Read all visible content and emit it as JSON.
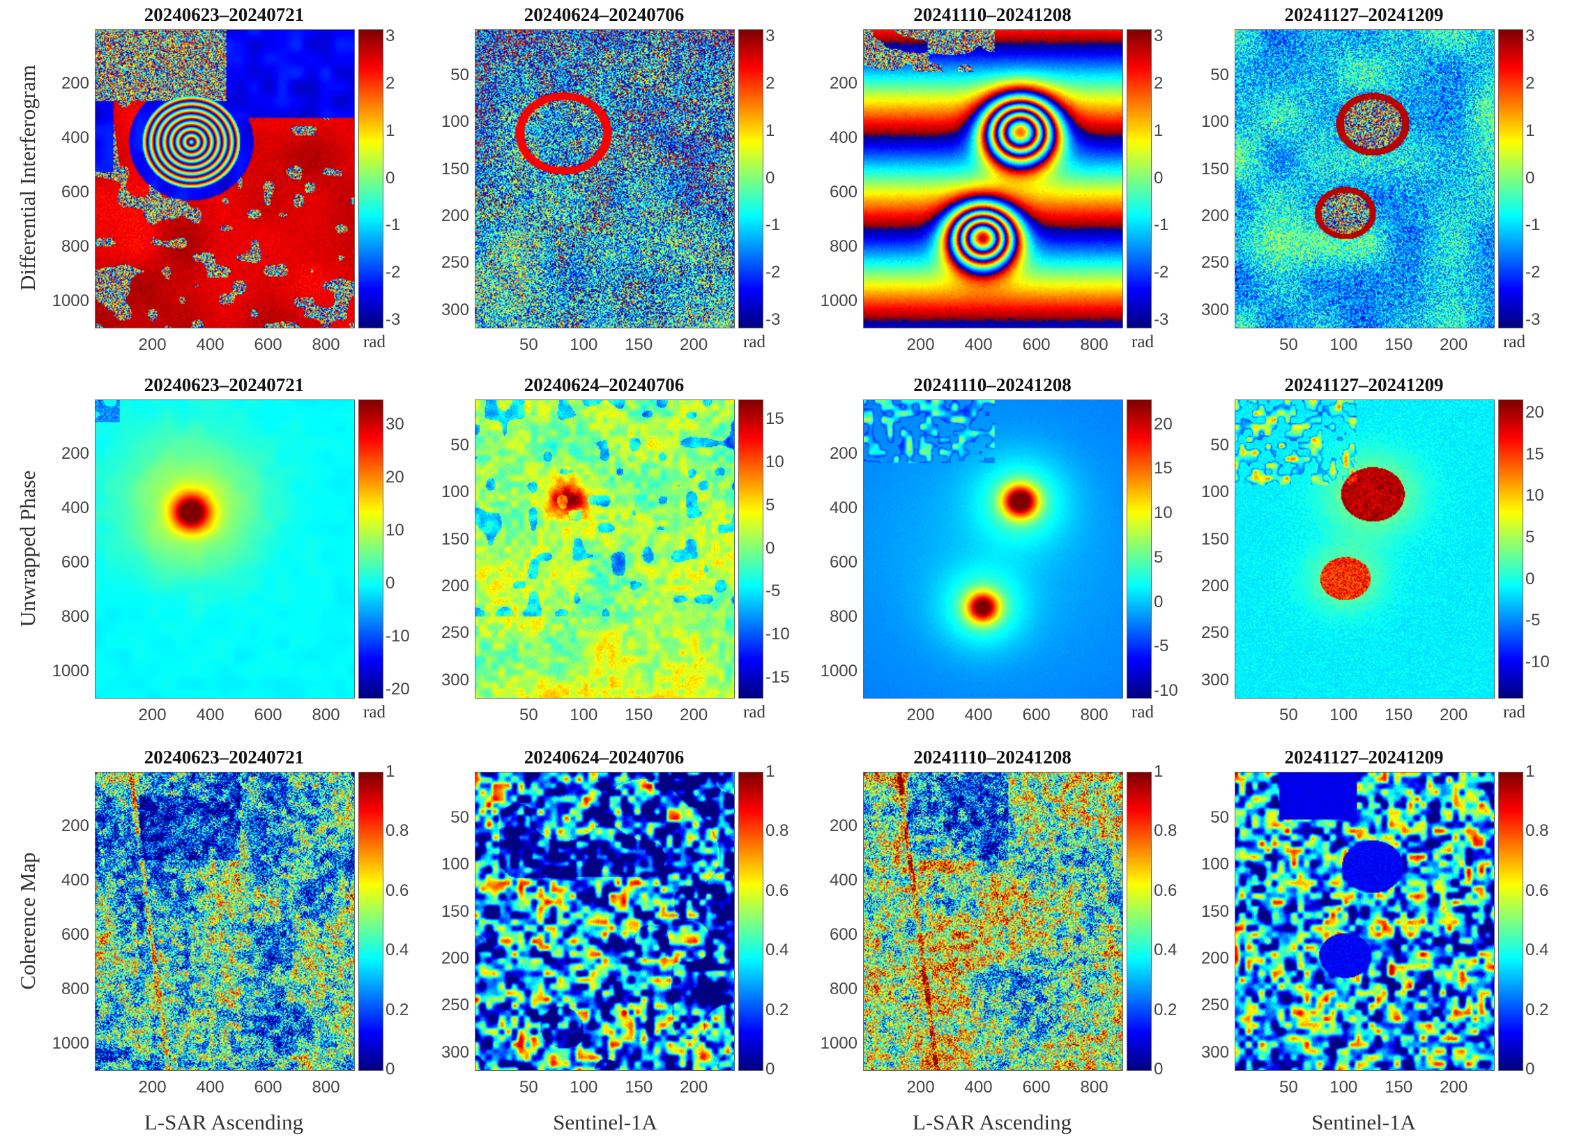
{
  "row_labels": [
    "Differential Interferogram",
    "Unwrapped Phase",
    "Coherence Map"
  ],
  "column_labels": [
    "L-SAR Ascending",
    "Sentinel-1A",
    "L-SAR Ascending",
    "Sentinel-1A"
  ],
  "chart_data": [
    {
      "type": "heatmap",
      "row": 0,
      "col": 0,
      "title": "20240623–20240721",
      "sensor": "L-SAR Ascending",
      "colormap": "jet",
      "unit": "rad",
      "clim": [
        -3.14,
        3.14
      ],
      "cbar_ticks": [
        "3",
        "2",
        "1",
        "0",
        "-1",
        "-2",
        "-3"
      ],
      "cbar_values": [
        3,
        2,
        1,
        0,
        -1,
        -2,
        -3
      ],
      "xlim": [
        1,
        895
      ],
      "ylim": [
        1,
        1095
      ],
      "xticks": [
        200,
        400,
        600,
        800
      ],
      "yticks": [
        200,
        400,
        600,
        800,
        1000
      ],
      "features": [
        {
          "kind": "concentric-fringes",
          "x": 330,
          "y": 410
        }
      ]
    },
    {
      "type": "heatmap",
      "row": 0,
      "col": 1,
      "title": "20240624–20240706",
      "sensor": "Sentinel-1A",
      "colormap": "jet",
      "unit": "rad",
      "clim": [
        -3.14,
        3.14
      ],
      "cbar_ticks": [
        "3",
        "2",
        "1",
        "0",
        "-1",
        "-2",
        "-3"
      ],
      "cbar_values": [
        3,
        2,
        1,
        0,
        -1,
        -2,
        -3
      ],
      "xlim": [
        1,
        236
      ],
      "ylim": [
        1,
        318
      ],
      "xticks": [
        50,
        100,
        150,
        200
      ],
      "yticks": [
        50,
        100,
        150,
        200,
        250,
        300
      ],
      "features": [
        {
          "kind": "fringe-ring",
          "x": 80,
          "y": 110
        }
      ]
    },
    {
      "type": "heatmap",
      "row": 0,
      "col": 2,
      "title": "20241110–20241208",
      "sensor": "L-SAR Ascending",
      "colormap": "jet",
      "unit": "rad",
      "clim": [
        -3.14,
        3.14
      ],
      "cbar_ticks": [
        "3",
        "2",
        "1",
        "0",
        "-1",
        "-2",
        "-3"
      ],
      "cbar_values": [
        3,
        2,
        1,
        0,
        -1,
        -2,
        -3
      ],
      "xlim": [
        1,
        895
      ],
      "ylim": [
        1,
        1095
      ],
      "xticks": [
        200,
        400,
        600,
        800
      ],
      "yticks": [
        200,
        400,
        600,
        800,
        1000
      ],
      "features": [
        {
          "kind": "concentric-fringes",
          "x": 540,
          "y": 370
        },
        {
          "kind": "concentric-fringes",
          "x": 410,
          "y": 760
        }
      ]
    },
    {
      "type": "heatmap",
      "row": 0,
      "col": 3,
      "title": "20241127–20241209",
      "sensor": "Sentinel-1A",
      "colormap": "jet",
      "unit": "rad",
      "clim": [
        -3.14,
        3.14
      ],
      "cbar_ticks": [
        "3",
        "2",
        "1",
        "0",
        "-1",
        "-2",
        "-3"
      ],
      "cbar_values": [
        3,
        2,
        1,
        0,
        -1,
        -2,
        -3
      ],
      "xlim": [
        1,
        236
      ],
      "ylim": [
        1,
        318
      ],
      "xticks": [
        50,
        100,
        150,
        200
      ],
      "yticks": [
        50,
        100,
        150,
        200,
        250,
        300
      ],
      "features": [
        {
          "kind": "fringe-ring",
          "x": 125,
          "y": 100
        },
        {
          "kind": "fringe-ring",
          "x": 100,
          "y": 195
        }
      ]
    },
    {
      "type": "heatmap",
      "row": 1,
      "col": 0,
      "title": "20240623–20240721",
      "sensor": "L-SAR Ascending",
      "colormap": "jet",
      "unit": "rad",
      "clim": [
        -21.4,
        34.7
      ],
      "cbar_ticks": [
        "30",
        "20",
        "10",
        "0",
        "-10",
        "-20"
      ],
      "cbar_values": [
        30,
        20,
        10,
        0,
        -10,
        -20
      ],
      "xlim": [
        1,
        895
      ],
      "ylim": [
        1,
        1095
      ],
      "xticks": [
        200,
        400,
        600,
        800
      ],
      "yticks": [
        200,
        400,
        600,
        800,
        1000
      ],
      "features": [
        {
          "kind": "peak",
          "x": 330,
          "y": 410,
          "value": 33
        }
      ]
    },
    {
      "type": "heatmap",
      "row": 1,
      "col": 1,
      "title": "20240624–20240706",
      "sensor": "Sentinel-1A",
      "colormap": "jet",
      "unit": "rad",
      "clim": [
        -17.3,
        17.3
      ],
      "cbar_ticks": [
        "15",
        "10",
        "5",
        "0",
        "-5",
        "-10",
        "-15"
      ],
      "cbar_values": [
        15,
        10,
        5,
        0,
        -5,
        -10,
        -15
      ],
      "xlim": [
        1,
        236
      ],
      "ylim": [
        1,
        318
      ],
      "xticks": [
        50,
        100,
        150,
        200
      ],
      "yticks": [
        50,
        100,
        150,
        200,
        250,
        300
      ],
      "features": [
        {
          "kind": "peak",
          "x": 85,
          "y": 105,
          "value": 15
        }
      ]
    },
    {
      "type": "heatmap",
      "row": 1,
      "col": 2,
      "title": "20241110–20241208",
      "sensor": "L-SAR Ascending",
      "colormap": "jet",
      "unit": "rad",
      "clim": [
        -10.7,
        22.8
      ],
      "cbar_ticks": [
        "20",
        "15",
        "10",
        "5",
        "0",
        "-5",
        "-10"
      ],
      "cbar_values": [
        20,
        15,
        10,
        5,
        0,
        -5,
        -10
      ],
      "xlim": [
        1,
        895
      ],
      "ylim": [
        1,
        1095
      ],
      "xticks": [
        200,
        400,
        600,
        800
      ],
      "yticks": [
        200,
        400,
        600,
        800,
        1000
      ],
      "features": [
        {
          "kind": "peak",
          "x": 540,
          "y": 370,
          "value": 22
        },
        {
          "kind": "peak",
          "x": 410,
          "y": 760,
          "value": 19
        }
      ]
    },
    {
      "type": "heatmap",
      "row": 1,
      "col": 3,
      "title": "20241127–20241209",
      "sensor": "Sentinel-1A",
      "colormap": "jet",
      "unit": "rad",
      "clim": [
        -14.2,
        21.6
      ],
      "cbar_ticks": [
        "20",
        "15",
        "10",
        "5",
        "0",
        "-5",
        "-10"
      ],
      "cbar_values": [
        20,
        15,
        10,
        5,
        0,
        -5,
        -10
      ],
      "xlim": [
        1,
        236
      ],
      "ylim": [
        1,
        318
      ],
      "xticks": [
        50,
        100,
        150,
        200
      ],
      "yticks": [
        50,
        100,
        150,
        200,
        250,
        300
      ],
      "features": [
        {
          "kind": "peak",
          "x": 125,
          "y": 100,
          "value": 20
        },
        {
          "kind": "peak",
          "x": 100,
          "y": 190,
          "value": 15
        }
      ]
    },
    {
      "type": "heatmap",
      "row": 2,
      "col": 0,
      "title": "20240623–20240721",
      "sensor": "L-SAR Ascending",
      "colormap": "jet",
      "unit": "",
      "clim": [
        0,
        1
      ],
      "cbar_ticks": [
        "1",
        "0.8",
        "0.6",
        "0.4",
        "0.2",
        "0"
      ],
      "cbar_values": [
        1,
        0.8,
        0.6,
        0.4,
        0.2,
        0
      ],
      "xlim": [
        1,
        895
      ],
      "ylim": [
        1,
        1095
      ],
      "xticks": [
        200,
        400,
        600,
        800
      ],
      "yticks": [
        200,
        400,
        600,
        800,
        1000
      ],
      "features": []
    },
    {
      "type": "heatmap",
      "row": 2,
      "col": 1,
      "title": "20240624–20240706",
      "sensor": "Sentinel-1A",
      "colormap": "jet",
      "unit": "",
      "clim": [
        0,
        1
      ],
      "cbar_ticks": [
        "1",
        "0.8",
        "0.6",
        "0.4",
        "0.2",
        "0"
      ],
      "cbar_values": [
        1,
        0.8,
        0.6,
        0.4,
        0.2,
        0
      ],
      "xlim": [
        1,
        236
      ],
      "ylim": [
        1,
        318
      ],
      "xticks": [
        50,
        100,
        150,
        200
      ],
      "yticks": [
        50,
        100,
        150,
        200,
        250,
        300
      ],
      "features": []
    },
    {
      "type": "heatmap",
      "row": 2,
      "col": 2,
      "title": "20241110–20241208",
      "sensor": "L-SAR Ascending",
      "colormap": "jet",
      "unit": "",
      "clim": [
        0,
        1
      ],
      "cbar_ticks": [
        "1",
        "0.8",
        "0.6",
        "0.4",
        "0.2",
        "0"
      ],
      "cbar_values": [
        1,
        0.8,
        0.6,
        0.4,
        0.2,
        0
      ],
      "xlim": [
        1,
        895
      ],
      "ylim": [
        1,
        1095
      ],
      "xticks": [
        200,
        400,
        600,
        800
      ],
      "yticks": [
        200,
        400,
        600,
        800,
        1000
      ],
      "features": []
    },
    {
      "type": "heatmap",
      "row": 2,
      "col": 3,
      "title": "20241127–20241209",
      "sensor": "Sentinel-1A",
      "colormap": "jet",
      "unit": "",
      "clim": [
        0,
        1
      ],
      "cbar_ticks": [
        "1",
        "0.8",
        "0.6",
        "0.4",
        "0.2",
        "0"
      ],
      "cbar_values": [
        1,
        0.8,
        0.6,
        0.4,
        0.2,
        0
      ],
      "xlim": [
        1,
        236
      ],
      "ylim": [
        1,
        318
      ],
      "xticks": [
        50,
        100,
        150,
        200
      ],
      "yticks": [
        50,
        100,
        150,
        200,
        250,
        300
      ],
      "features": [
        {
          "kind": "low-coherence-disc",
          "x": 125,
          "y": 100
        },
        {
          "kind": "low-coherence-disc",
          "x": 100,
          "y": 195
        }
      ]
    }
  ]
}
